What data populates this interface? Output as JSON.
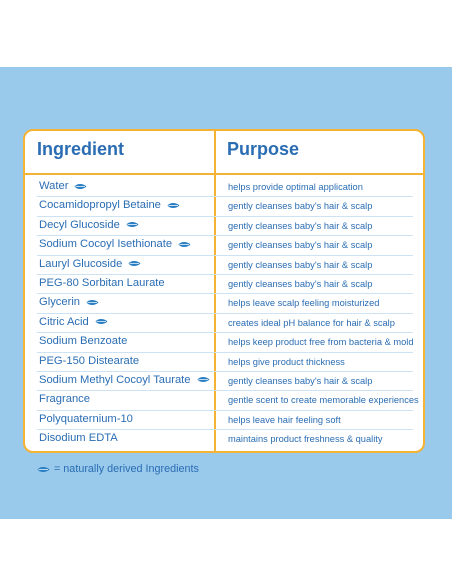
{
  "table": {
    "header_ingredient": "Ingredient",
    "header_purpose": "Purpose",
    "rows": [
      {
        "ingredient": "Water",
        "purpose": "helps provide optimal application",
        "natural": true
      },
      {
        "ingredient": "Cocamidopropyl Betaine",
        "purpose": "gently cleanses baby's hair & scalp",
        "natural": true
      },
      {
        "ingredient": "Decyl Glucoside",
        "purpose": "gently cleanses baby's hair & scalp",
        "natural": true
      },
      {
        "ingredient": "Sodium Cocoyl Isethionate",
        "purpose": "gently cleanses baby's hair & scalp",
        "natural": true
      },
      {
        "ingredient": "Lauryl Glucoside",
        "purpose": "gently cleanses baby's hair & scalp",
        "natural": true
      },
      {
        "ingredient": "PEG-80 Sorbitan Laurate",
        "purpose": "gently cleanses baby's hair & scalp",
        "natural": false
      },
      {
        "ingredient": "Glycerin",
        "purpose": "helps leave scalp feeling moisturized",
        "natural": true
      },
      {
        "ingredient": "Citric Acid",
        "purpose": "creates ideal pH balance for hair & scalp",
        "natural": true
      },
      {
        "ingredient": "Sodium Benzoate",
        "purpose": "helps keep product free from bacteria & mold",
        "natural": false
      },
      {
        "ingredient": "PEG-150 Distearate",
        "purpose": "helps give product thickness",
        "natural": false
      },
      {
        "ingredient": "Sodium Methyl Cocoyl Taurate",
        "purpose": "gently cleanses baby's hair & scalp",
        "natural": true
      },
      {
        "ingredient": "Fragrance",
        "purpose": "gentle scent to create memorable experiences",
        "natural": false
      },
      {
        "ingredient": "Polyquaternium-10",
        "purpose": "helps leave hair feeling soft",
        "natural": false
      },
      {
        "ingredient": "Disodium EDTA",
        "purpose": "maintains product freshness & quality",
        "natural": false
      }
    ]
  },
  "legend": {
    "text": "= naturally derived Ingredients",
    "icon": "leaf-icon"
  },
  "colors": {
    "background_panel": "#99c9eb",
    "border": "#f5b335",
    "text": "#2a6db3",
    "leaf": "#2a7fc4"
  }
}
